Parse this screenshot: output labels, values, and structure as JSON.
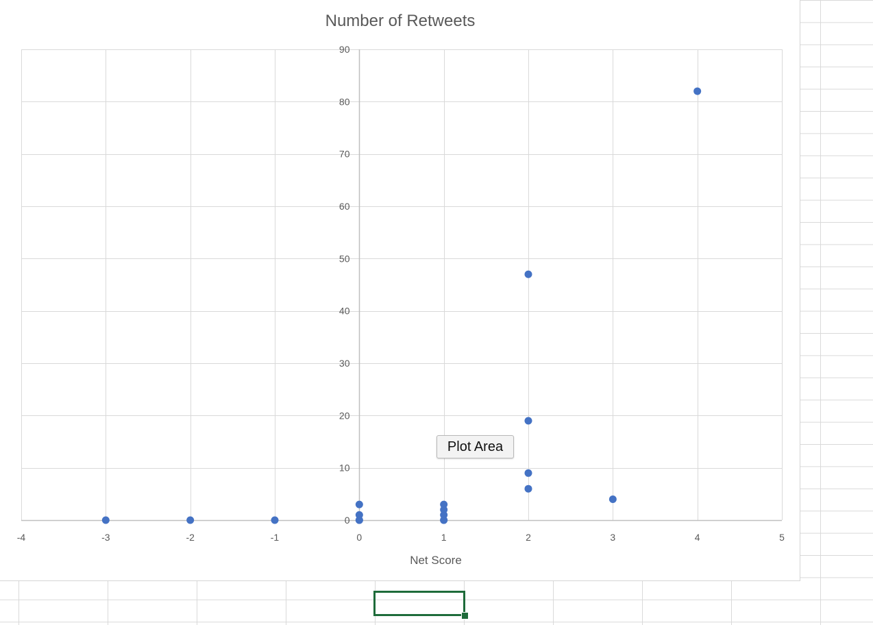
{
  "window": {
    "app": "Excel worksheet with scatter chart"
  },
  "tooltip": {
    "label": "Plot Area"
  },
  "colors": {
    "marker": "#4472C4",
    "gridline": "#d9d9d9",
    "title": "#595959",
    "axis_text": "#595959",
    "selection": "#1e6b3a"
  },
  "chart_data": {
    "type": "scatter",
    "title": "Number of Retweets",
    "xlabel": "Net Score",
    "ylabel": "",
    "xlim": [
      -4,
      5
    ],
    "ylim": [
      0,
      90
    ],
    "x_ticks": [
      -4,
      -3,
      -2,
      -1,
      0,
      1,
      2,
      3,
      4,
      5
    ],
    "y_ticks": [
      0,
      10,
      20,
      30,
      40,
      50,
      60,
      70,
      80,
      90
    ],
    "grid": true,
    "legend": "none",
    "series": [
      {
        "x": [
          -3,
          -2,
          -1,
          0,
          0,
          0,
          0,
          1,
          1,
          1,
          1,
          1,
          2,
          2,
          2,
          2,
          3,
          4
        ],
        "y": [
          0,
          0,
          0,
          0,
          1,
          3,
          0,
          0,
          1,
          2,
          3,
          0,
          6,
          9,
          19,
          47,
          4,
          82
        ]
      }
    ]
  }
}
